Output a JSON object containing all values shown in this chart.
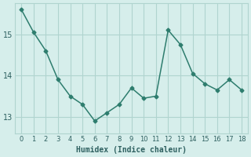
{
  "x": [
    0,
    1,
    2,
    3,
    4,
    5,
    6,
    7,
    8,
    9,
    10,
    11,
    12,
    13,
    14,
    15,
    16,
    17,
    18
  ],
  "y": [
    15.6,
    15.05,
    14.6,
    13.9,
    13.5,
    13.3,
    12.9,
    13.1,
    13.3,
    13.7,
    13.45,
    13.5,
    15.1,
    14.75,
    14.05,
    13.8,
    13.65,
    13.9,
    13.65
  ],
  "line_color": "#2e7d6e",
  "marker": "D",
  "marker_size": 2.5,
  "xlabel": "Humidex (Indice chaleur)",
  "xlim": [
    -0.5,
    18.5
  ],
  "ylim": [
    12.6,
    15.75
  ],
  "yticks": [
    13,
    14,
    15
  ],
  "xticks": [
    0,
    1,
    2,
    3,
    4,
    5,
    6,
    7,
    8,
    9,
    10,
    11,
    12,
    13,
    14,
    15,
    16,
    17,
    18
  ],
  "bg_color": "#d6eeeb",
  "grid_color": "#b0d4cf",
  "font_color": "#2e6060",
  "linewidth": 1.1
}
